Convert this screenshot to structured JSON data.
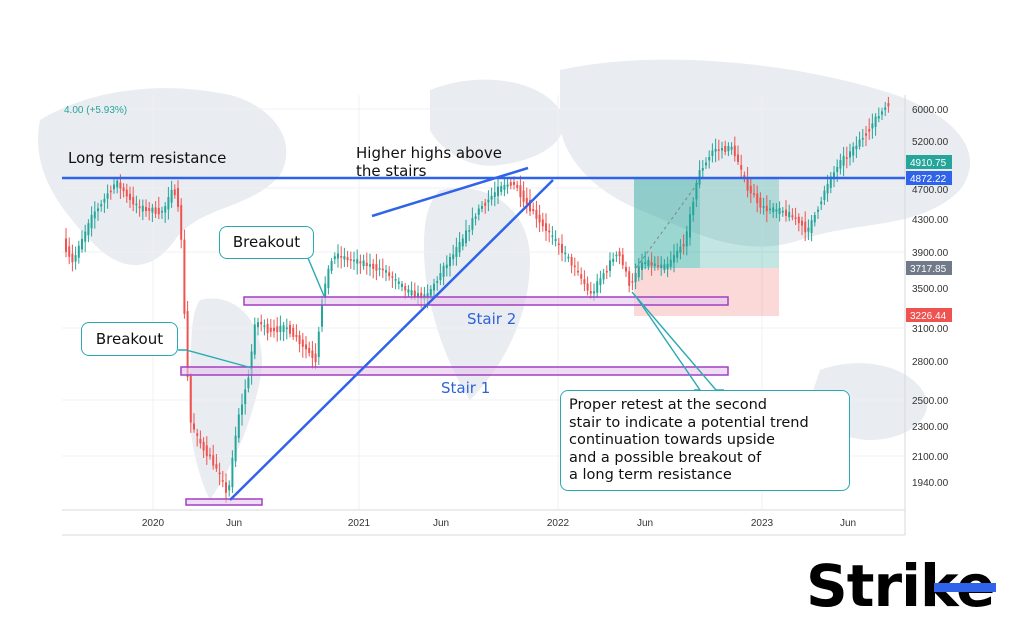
{
  "chart_data": {
    "type": "candlestick",
    "price_change": "4.00 (+5.93%)",
    "y_axis": {
      "ticks": [
        "6000.00",
        "5200.00",
        "4700.00",
        "4300.00",
        "3900.00",
        "3500.00",
        "3100.00",
        "2800.00",
        "2500.00",
        "2300.00",
        "2100.00",
        "1940.00"
      ],
      "price_tags": [
        {
          "label": "4910.75",
          "color": "#26a69a"
        },
        {
          "label": "4872.22",
          "color": "#2f63e9"
        },
        {
          "label": "3717.85",
          "color": "#707a88"
        },
        {
          "label": "3226.44",
          "color": "#ef5350"
        }
      ]
    },
    "x_axis": {
      "ticks": [
        "2020",
        "Jun",
        "2021",
        "Jun",
        "2022",
        "Jun",
        "2023",
        "Jun"
      ]
    },
    "levels": {
      "long_term_resistance": 4872.22,
      "stair_2": [
        3340,
        3400
      ],
      "stair_1": [
        2720,
        2770
      ],
      "base": [
        1890,
        1910
      ]
    },
    "trade_box": {
      "entry": 3717.85,
      "target": 4872.22,
      "stop": 3226.44
    },
    "colors": {
      "up": "#26a69a",
      "down": "#ef5350",
      "line": "#2f63e9",
      "stair": "#a040c0",
      "callout_border": "#2aa9b2"
    }
  },
  "annotations": {
    "long_term_resistance": "Long term resistance",
    "higher_highs": "Higher highs above\nthe stairs",
    "breakout_1": "Breakout",
    "breakout_2": "Breakout",
    "stair_2": "Stair 2",
    "stair_1": "Stair 1",
    "retest": "Proper retest at the second\nstair to indicate a potential trend\ncontinuation towards upside\nand a possible breakout of\na long term resistance"
  },
  "logo": {
    "text": "Strike"
  }
}
